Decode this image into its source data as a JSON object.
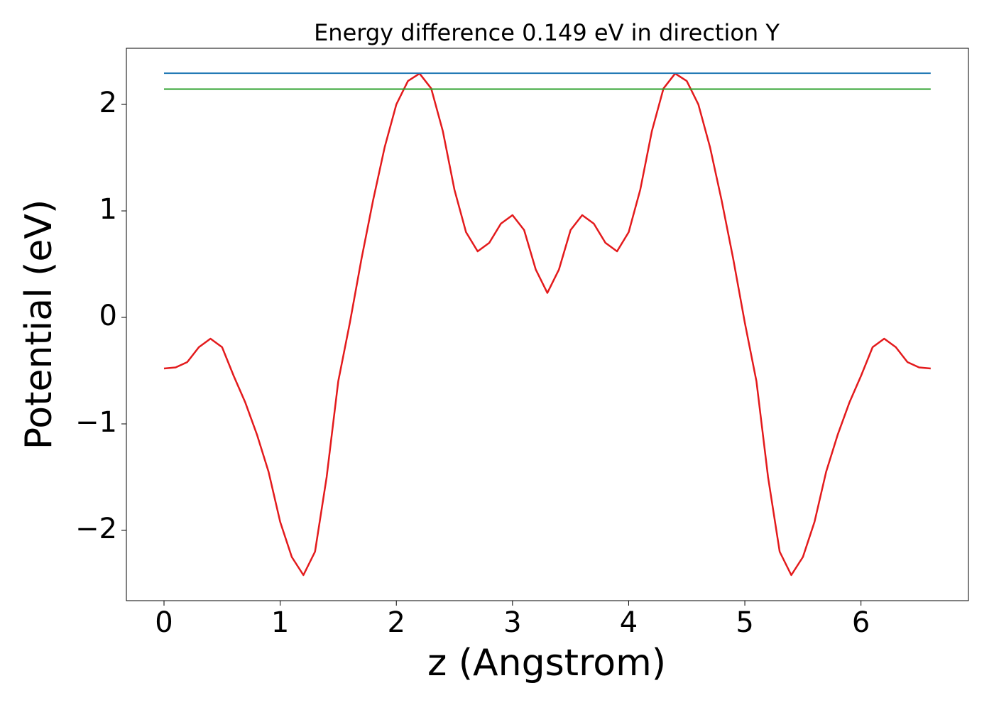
{
  "chart_data": {
    "type": "line",
    "title": "Energy difference 0.149 eV in direction Y",
    "xlabel": "z (Angstrom)",
    "ylabel": "Potential (eV)",
    "xlim": [
      -0.324,
      6.925
    ],
    "ylim": [
      -2.66,
      2.527
    ],
    "xticks": [
      0,
      1,
      2,
      3,
      4,
      5,
      6
    ],
    "yticks": [
      {
        "value": -2,
        "label": "−2"
      },
      {
        "value": -1,
        "label": "−1"
      },
      0,
      1,
      2
    ],
    "grid": false,
    "series": [
      {
        "color": "#e31a1c",
        "x": [
          0,
          0.1,
          0.2,
          0.3,
          0.4,
          0.5,
          0.6,
          0.7,
          0.8,
          0.9,
          1.0,
          1.1,
          1.2,
          1.3,
          1.4,
          1.5,
          1.6,
          1.7,
          1.8,
          1.9,
          2.0,
          2.1,
          2.2,
          2.3,
          2.4,
          2.5,
          2.6,
          2.7,
          2.8,
          2.9,
          3.0,
          3.1,
          3.2,
          3.3,
          3.4,
          3.5,
          3.6,
          3.7,
          3.8,
          3.9,
          4.0,
          4.1,
          4.2,
          4.3,
          4.4,
          4.5,
          4.6,
          4.7,
          4.8,
          4.9,
          5.0,
          5.1,
          5.2,
          5.3,
          5.4,
          5.5,
          5.6,
          5.7,
          5.8,
          5.9,
          6.0,
          6.1,
          6.2,
          6.3,
          6.4,
          6.5,
          6.6
        ],
        "values": [
          -0.48,
          -0.47,
          -0.42,
          -0.28,
          -0.2,
          -0.28,
          -0.55,
          -0.8,
          -1.1,
          -1.45,
          -1.92,
          -2.25,
          -2.42,
          -2.2,
          -1.5,
          -0.6,
          -0.05,
          0.55,
          1.1,
          1.6,
          2.0,
          2.22,
          2.29,
          2.15,
          1.75,
          1.2,
          0.8,
          0.62,
          0.7,
          0.88,
          0.96,
          0.82,
          0.45,
          0.23,
          0.45,
          0.82,
          0.96,
          0.88,
          0.7,
          0.62,
          0.8,
          1.2,
          1.75,
          2.15,
          2.29,
          2.22,
          2.0,
          1.6,
          1.1,
          0.55,
          -0.05,
          -0.6,
          -1.5,
          -2.2,
          -2.42,
          -2.25,
          -1.92,
          -1.45,
          -1.1,
          -0.8,
          -0.55,
          -0.28,
          -0.2,
          -0.28,
          -0.42,
          -0.47,
          -0.48
        ]
      },
      {
        "color": "#1f77b4",
        "x": [
          0,
          6.6
        ],
        "values": [
          2.293,
          2.293
        ]
      },
      {
        "color": "#2ca02c",
        "x": [
          0,
          6.6
        ],
        "values": [
          2.144,
          2.144
        ]
      }
    ]
  }
}
